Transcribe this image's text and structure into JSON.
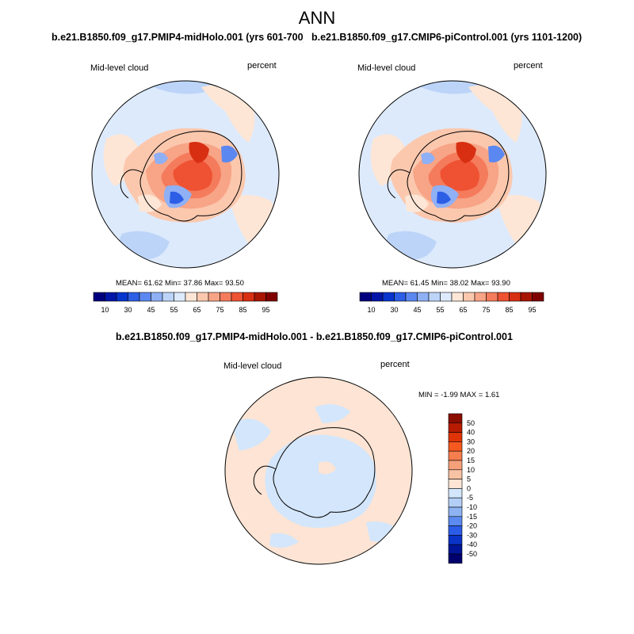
{
  "main_title": "ANN",
  "panels": [
    {
      "case": "b.e21.B1850.f09_g17.PMIP4-midHolo.001 (yrs 601-700)",
      "variable": "Mid-level cloud",
      "units": "percent",
      "stats": "MEAN=  61.62   Min=  37.86   Max=  93.50",
      "colorbar_labels": [
        "10",
        "30",
        "45",
        "55",
        "65",
        "75",
        "85",
        "95"
      ]
    },
    {
      "case": "b.e21.B1850.f09_g17.CMIP6-piControl.001 (yrs 1101-1200)",
      "variable": "Mid-level cloud",
      "units": "percent",
      "stats": "MEAN=  61.45   Min=  38.02   Max=  93.90",
      "colorbar_labels": [
        "10",
        "30",
        "45",
        "55",
        "65",
        "75",
        "85",
        "95"
      ]
    }
  ],
  "diff_panel": {
    "title": "b.e21.B1850.f09_g17.PMIP4-midHolo.001 - b.e21.B1850.f09_g17.CMIP6-piControl.001",
    "variable": "Mid-level cloud",
    "units": "percent",
    "stats": "MIN =  -1.99 MAX =   1.61",
    "colorbar_labels": [
      "50",
      "40",
      "30",
      "20",
      "15",
      "10",
      "5",
      "0",
      "-5",
      "-10",
      "-15",
      "-20",
      "-30",
      "-40",
      "-50"
    ]
  },
  "colors": {
    "field_colorbar": [
      "#00007f",
      "#0015a8",
      "#0734cc",
      "#2d5ee6",
      "#5b88f0",
      "#8fb0f5",
      "#bcd4f8",
      "#ddeafc",
      "#fde6d6",
      "#fbc8ae",
      "#f8a486",
      "#f47b5c",
      "#ee5232",
      "#d82f12",
      "#a81503",
      "#7f0000"
    ],
    "diff_colorbar": [
      "#8b0d00",
      "#b81c00",
      "#e03408",
      "#f5591f",
      "#f67d4d",
      "#f6a07b",
      "#f8c2a4",
      "#fde4d4",
      "#d3e6fb",
      "#b3cff7",
      "#8db3f3",
      "#5b8af0",
      "#2b5ce8",
      "#0b33c8",
      "#001598",
      "#00006e"
    ]
  }
}
